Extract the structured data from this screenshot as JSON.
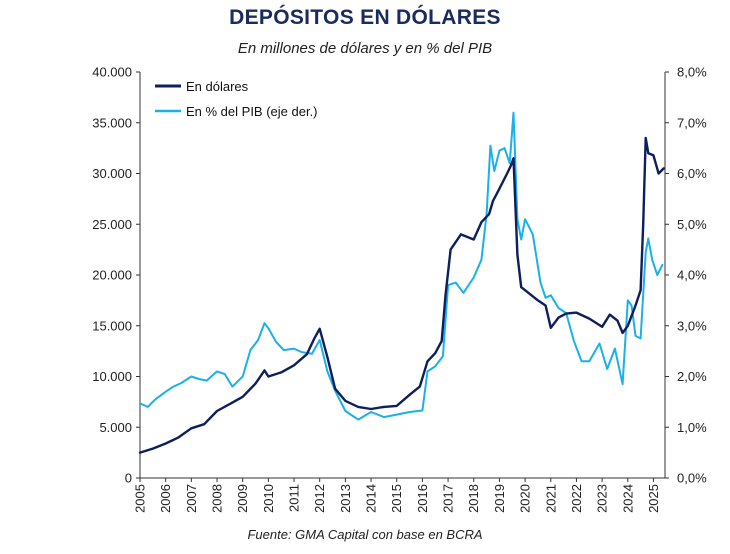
{
  "header": {
    "title": "DEPÓSITOS EN DÓLARES",
    "subtitle": "En millones de dólares y en % del PIB"
  },
  "footer": {
    "source": "Fuente: GMA Capital con base en BCRA"
  },
  "colors": {
    "usd_series": "#0d1f5c",
    "pct_series": "#1ab0ea",
    "axis": "#333333",
    "text": "#222222"
  },
  "chart_data": {
    "type": "line",
    "title": "DEPÓSITOS EN DÓLARES",
    "subtitle": "En millones de dólares y en % del PIB",
    "xlabel": "",
    "ylabel": "",
    "y2label": "",
    "grid": false,
    "legend_position": "top-left",
    "xlim": [
      2005.0,
      2025.45
    ],
    "ylim": [
      0,
      40000
    ],
    "y2lim": [
      0.0,
      8.0
    ],
    "x_tick_labels": [
      "2005",
      "2006",
      "2007",
      "2008",
      "2009",
      "2010",
      "2011",
      "2012",
      "2013",
      "2014",
      "2015",
      "2016",
      "2017",
      "2018",
      "2019",
      "2020",
      "2021",
      "2022",
      "2023",
      "2024",
      "2025"
    ],
    "y_tick_labels": [
      "0",
      "5.000",
      "10.000",
      "15.000",
      "20.000",
      "25.000",
      "30.000",
      "35.000",
      "40.000"
    ],
    "y2_tick_labels": [
      "0,0%",
      "1,0%",
      "2,0%",
      "3,0%",
      "4,0%",
      "5,0%",
      "6,0%",
      "7,0%",
      "8,0%"
    ],
    "series": [
      {
        "name": "En dólares",
        "axis": "left",
        "x": [
          2005.0,
          2005.5,
          2006.0,
          2006.5,
          2007.0,
          2007.5,
          2008.0,
          2008.5,
          2009.0,
          2009.5,
          2009.85,
          2010.0,
          2010.5,
          2011.0,
          2011.5,
          2011.8,
          2012.0,
          2012.3,
          2012.6,
          2013.0,
          2013.5,
          2014.0,
          2014.5,
          2015.0,
          2015.5,
          2015.9,
          2016.2,
          2016.5,
          2016.75,
          2016.9,
          2017.1,
          2017.5,
          2018.0,
          2018.3,
          2018.6,
          2018.75,
          2019.0,
          2019.3,
          2019.45,
          2019.55,
          2019.7,
          2019.85,
          2020.0,
          2020.5,
          2020.8,
          2021.0,
          2021.3,
          2021.6,
          2022.0,
          2022.5,
          2023.0,
          2023.3,
          2023.6,
          2023.8,
          2024.0,
          2024.3,
          2024.5,
          2024.6,
          2024.7,
          2024.8,
          2025.0,
          2025.2,
          2025.4
        ],
        "y": [
          2500,
          2900,
          3400,
          4000,
          4900,
          5300,
          6600,
          7300,
          8000,
          9300,
          10600,
          10000,
          10400,
          11100,
          12200,
          13800,
          14700,
          11900,
          8800,
          7600,
          7000,
          6800,
          7000,
          7100,
          8200,
          9000,
          11500,
          12300,
          13500,
          18000,
          22500,
          24000,
          23500,
          25200,
          26000,
          27300,
          28500,
          30000,
          30800,
          31500,
          22000,
          18800,
          18500,
          17500,
          17000,
          14800,
          15800,
          16200,
          16300,
          15700,
          14900,
          16100,
          15500,
          14300,
          15000,
          17000,
          18500,
          25000,
          33500,
          32000,
          31800,
          30000,
          30500
        ]
      },
      {
        "name": "En % del PIB (eje der.)",
        "axis": "right",
        "x": [
          2005.0,
          2005.3,
          2005.6,
          2006.0,
          2006.3,
          2006.6,
          2007.0,
          2007.3,
          2007.6,
          2008.0,
          2008.3,
          2008.6,
          2009.0,
          2009.3,
          2009.6,
          2009.85,
          2010.0,
          2010.3,
          2010.6,
          2011.0,
          2011.3,
          2011.7,
          2012.0,
          2012.3,
          2012.6,
          2013.0,
          2013.5,
          2014.0,
          2014.5,
          2015.0,
          2015.5,
          2016.0,
          2016.2,
          2016.5,
          2016.8,
          2017.0,
          2017.3,
          2017.6,
          2018.0,
          2018.3,
          2018.5,
          2018.65,
          2018.8,
          2019.0,
          2019.2,
          2019.4,
          2019.55,
          2019.7,
          2019.85,
          2020.0,
          2020.3,
          2020.6,
          2020.8,
          2021.0,
          2021.3,
          2021.6,
          2021.9,
          2022.2,
          2022.5,
          2022.9,
          2023.2,
          2023.5,
          2023.8,
          2024.0,
          2024.15,
          2024.3,
          2024.5,
          2024.7,
          2024.8,
          2024.95,
          2025.15,
          2025.35
        ],
        "y": [
          1.47,
          1.4,
          1.55,
          1.7,
          1.8,
          1.87,
          2.0,
          1.95,
          1.92,
          2.1,
          2.05,
          1.8,
          2.0,
          2.52,
          2.72,
          3.05,
          2.95,
          2.68,
          2.52,
          2.55,
          2.48,
          2.45,
          2.72,
          2.1,
          1.72,
          1.32,
          1.15,
          1.3,
          1.2,
          1.25,
          1.3,
          1.33,
          2.1,
          2.2,
          2.4,
          3.8,
          3.85,
          3.65,
          3.95,
          4.3,
          5.2,
          6.55,
          6.05,
          6.45,
          6.5,
          6.2,
          7.2,
          5.1,
          4.7,
          5.1,
          4.8,
          3.85,
          3.55,
          3.6,
          3.35,
          3.25,
          2.7,
          2.3,
          2.3,
          2.65,
          2.15,
          2.55,
          1.85,
          3.5,
          3.4,
          2.8,
          2.75,
          4.45,
          4.72,
          4.3,
          4.0,
          4.2
        ]
      }
    ]
  }
}
